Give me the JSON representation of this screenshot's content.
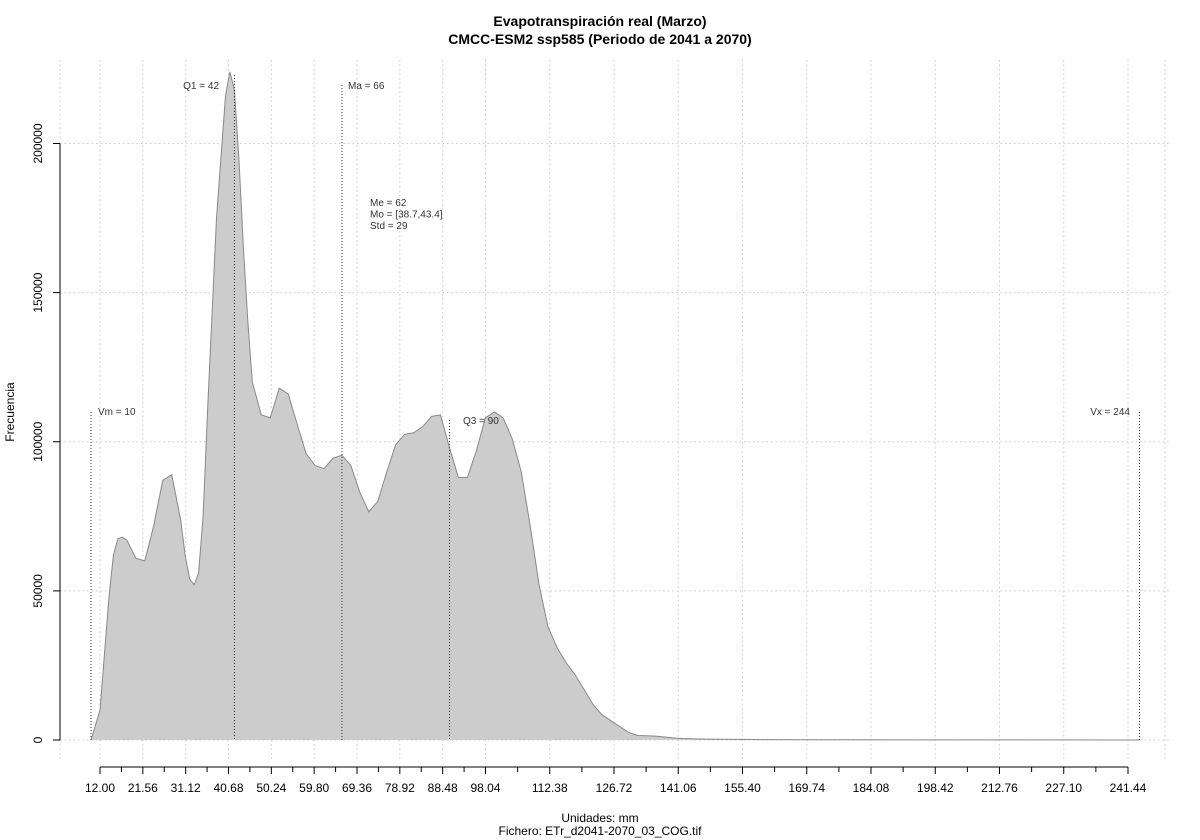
{
  "chart_data": {
    "type": "area",
    "title": "Evapotranspiración real (Marzo)",
    "subtitle": "CMCC-ESM2 ssp585 (Periodo de 2041 a 2070)",
    "xlabel": "Unidades: mm",
    "ylabel": "Frecuencia",
    "file_label": "Fichero: ETr_d2041-2070_03_COG.tif",
    "xlim": [
      10,
      244
    ],
    "ylim": [
      0,
      225000
    ],
    "x_ticks": [
      "12.00",
      "21.56",
      "31.12",
      "40.68",
      "50.24",
      "59.80",
      "69.36",
      "78.92",
      "88.48",
      "98.04",
      "112.38",
      "126.72",
      "141.06",
      "155.40",
      "169.74",
      "184.08",
      "198.42",
      "212.76",
      "227.10",
      "241.44"
    ],
    "y_ticks": [
      "0",
      "50000",
      "100000",
      "150000",
      "200000"
    ],
    "grid": true,
    "fill_color": "#cccccc",
    "line_color": "#888888",
    "series": [
      {
        "x": [
          10,
          12,
          14,
          15,
          16,
          17,
          18,
          20,
          22,
          24,
          26,
          28,
          30,
          31,
          32,
          33,
          34,
          35,
          36,
          38,
          40,
          41,
          42,
          43,
          44,
          45,
          46,
          48,
          50,
          52,
          54,
          56,
          58,
          60,
          62,
          64,
          66,
          68,
          70,
          72,
          74,
          76,
          78,
          80,
          82,
          84,
          86,
          88,
          90,
          92,
          94,
          96,
          98,
          100,
          102,
          104,
          106,
          108,
          110,
          112,
          114,
          116,
          118,
          120,
          122,
          124,
          126,
          128,
          130,
          132,
          134,
          136,
          138,
          140,
          142,
          144,
          146,
          148,
          150,
          155,
          160,
          170,
          180,
          200,
          220,
          240,
          244
        ],
        "y": [
          0,
          10000,
          48000,
          62000,
          67500,
          68000,
          67000,
          61000,
          60000,
          72000,
          87000,
          89000,
          74000,
          62000,
          54000,
          52000,
          56000,
          75000,
          110000,
          175000,
          216000,
          224000,
          218000,
          195000,
          165000,
          140000,
          120000,
          109000,
          108000,
          118000,
          116000,
          106000,
          96000,
          92000,
          91000,
          94500,
          95500,
          92000,
          83000,
          76500,
          80000,
          90000,
          99000,
          102500,
          103000,
          105000,
          108500,
          109000,
          98000,
          88000,
          88000,
          97000,
          108000,
          110000,
          108000,
          101000,
          90000,
          72000,
          52000,
          38000,
          31000,
          26000,
          22000,
          17000,
          12000,
          8500,
          6500,
          4500,
          2500,
          1500,
          1400,
          1300,
          1000,
          700,
          500,
          400,
          350,
          300,
          250,
          200,
          150,
          100,
          80,
          50,
          30,
          10,
          0
        ]
      }
    ],
    "vlines": [
      {
        "x": 10,
        "label": "Vm = 10"
      },
      {
        "x": 42,
        "label": "Q1 = 42"
      },
      {
        "x": 66,
        "label": "Ma = 66"
      },
      {
        "x": 90,
        "label": "Q3 = 90"
      },
      {
        "x": 244,
        "label": "Vx = 244"
      }
    ],
    "stats": [
      "Me = 62",
      "Mo = [38.7,43.4]",
      "Std = 29"
    ]
  }
}
